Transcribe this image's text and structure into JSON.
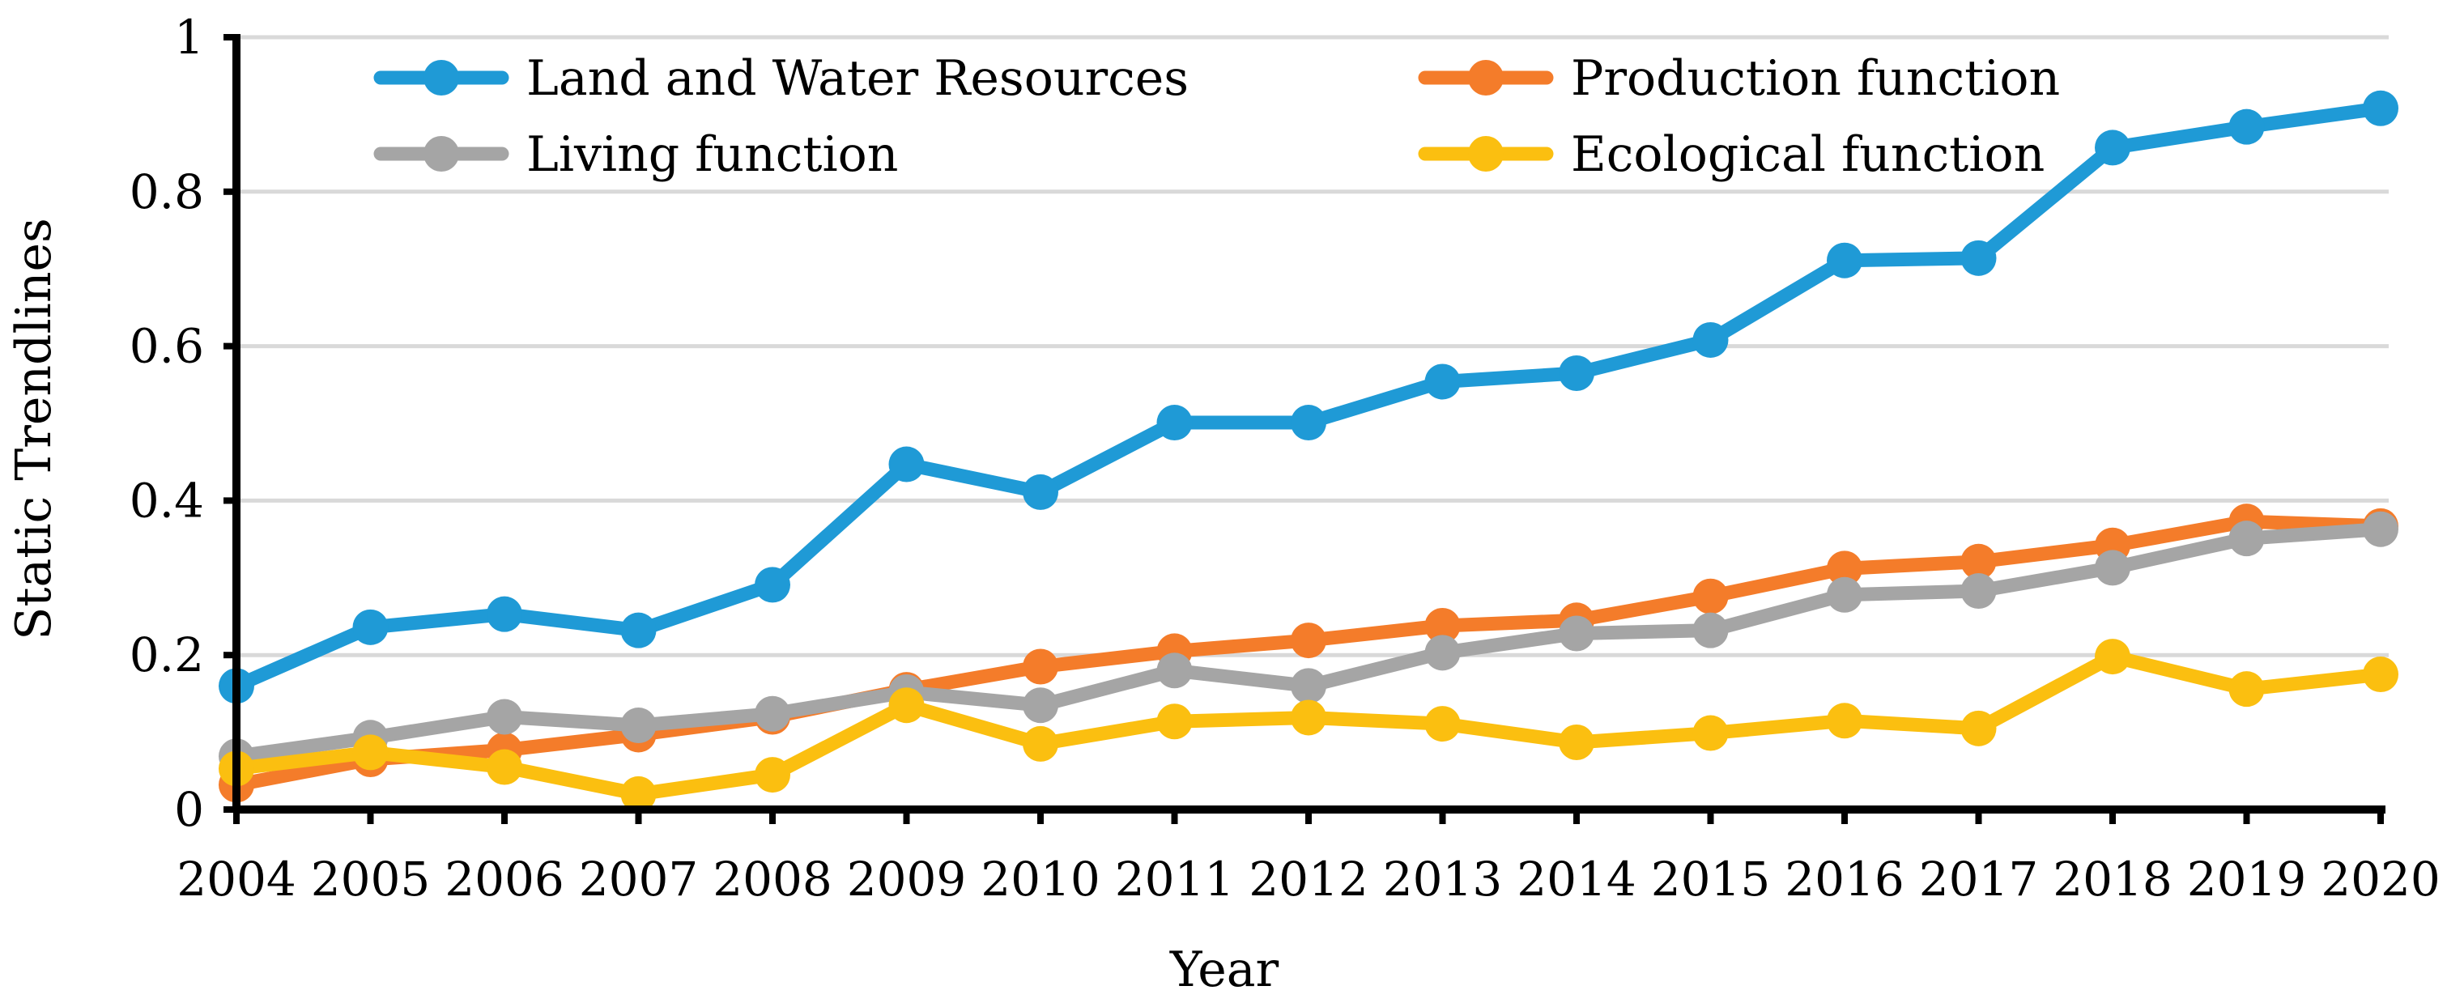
{
  "chart_data": {
    "type": "line",
    "title": "",
    "xlabel": "Year",
    "ylabel": "Static Trendlines",
    "ylim": [
      0,
      1
    ],
    "yticks": [
      0,
      0.2,
      0.4,
      0.6,
      0.8,
      1
    ],
    "ytick_labels": [
      "0",
      "0.2",
      "0.4",
      "0.6",
      "0.8",
      "1"
    ],
    "grid": "horizontal",
    "legend_position": "top",
    "categories": [
      "2004",
      "2005",
      "2006",
      "2007",
      "2008",
      "2009",
      "2010",
      "2011",
      "2012",
      "2013",
      "2014",
      "2015",
      "2016",
      "2017",
      "2018",
      "2019",
      "2020"
    ],
    "series": [
      {
        "name": "Land and Water Resources",
        "color": "#1f9ad6",
        "values": [
          0.16,
          0.236,
          0.253,
          0.232,
          0.291,
          0.447,
          0.411,
          0.501,
          0.501,
          0.554,
          0.565,
          0.608,
          0.711,
          0.714,
          0.857,
          0.884,
          0.908
        ]
      },
      {
        "name": "Production function",
        "color": "#f47c2a",
        "values": [
          0.032,
          0.065,
          0.077,
          0.097,
          0.12,
          0.155,
          0.185,
          0.205,
          0.219,
          0.238,
          0.245,
          0.276,
          0.312,
          0.321,
          0.342,
          0.373,
          0.367
        ]
      },
      {
        "name": "Living function",
        "color": "#a5a5a5",
        "values": [
          0.069,
          0.093,
          0.12,
          0.109,
          0.124,
          0.152,
          0.135,
          0.18,
          0.16,
          0.203,
          0.228,
          0.232,
          0.278,
          0.283,
          0.313,
          0.351,
          0.363
        ]
      },
      {
        "name": "Ecological function",
        "color": "#fbbf10",
        "values": [
          0.053,
          0.074,
          0.055,
          0.02,
          0.045,
          0.135,
          0.085,
          0.114,
          0.119,
          0.111,
          0.087,
          0.099,
          0.115,
          0.105,
          0.198,
          0.156,
          0.175
        ]
      }
    ]
  }
}
